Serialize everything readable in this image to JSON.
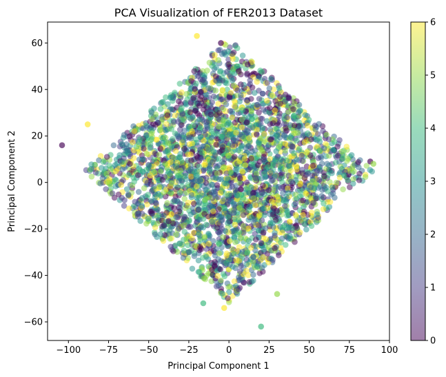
{
  "chart_data": {
    "type": "scatter",
    "title": "PCA Visualization of FER2013 Dataset",
    "xlabel": "Principal Component 1",
    "ylabel": "Principal Component 2",
    "xlim": [
      -113,
      100
    ],
    "ylim": [
      -68,
      69
    ],
    "xticks": [
      -100,
      -75,
      -50,
      -25,
      0,
      25,
      50,
      75,
      100
    ],
    "xtick_labels": [
      "−100",
      "−75",
      "−50",
      "−25",
      "0",
      "25",
      "50",
      "75",
      "100"
    ],
    "yticks": [
      -60,
      -40,
      -20,
      0,
      20,
      40,
      60
    ],
    "ytick_labels": [
      "−60",
      "−40",
      "−20",
      "0",
      "20",
      "40",
      "60"
    ],
    "grid": false,
    "colormap": "viridis",
    "colormap_stops": [
      "#440154",
      "#443983",
      "#31688e",
      "#21918c",
      "#35b779",
      "#90d743",
      "#fde725"
    ],
    "point_alpha": 0.5,
    "colorbar": {
      "range": [
        0,
        6
      ],
      "ticks": [
        0,
        1,
        2,
        3,
        4,
        5,
        6
      ],
      "tick_labels": [
        "0",
        "1",
        "2",
        "3",
        "4",
        "5",
        "6"
      ]
    },
    "point_cloud": {
      "description": "Dense diamond-shaped cloud of ~35,000 points, classes 0–6 thoroughly mixed",
      "center": [
        0,
        5
      ],
      "x_half_extent": 90,
      "y_half_extent": 57,
      "count": 3200
    },
    "notable_points": [
      {
        "x": -104,
        "y": 16,
        "class": 0
      },
      {
        "x": -20,
        "y": 63,
        "class": 6
      },
      {
        "x": -5,
        "y": 60,
        "class": 0
      },
      {
        "x": 20,
        "y": -62,
        "class": 4
      },
      {
        "x": -88,
        "y": 25,
        "class": 6
      },
      {
        "x": 88,
        "y": 9,
        "class": 0
      },
      {
        "x": 90,
        "y": 8,
        "class": 5
      },
      {
        "x": -3,
        "y": -54,
        "class": 6
      },
      {
        "x": -16,
        "y": -52,
        "class": 4
      },
      {
        "x": 30,
        "y": -48,
        "class": 5
      }
    ]
  }
}
